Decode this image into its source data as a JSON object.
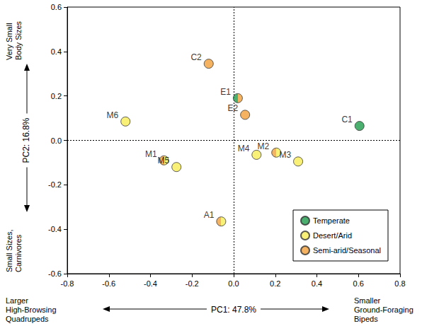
{
  "chart_data": {
    "type": "scatter",
    "x_label": "PC1: 47.8%",
    "y_label": "PC2: 16.8%",
    "annotations": {
      "x_low": "Larger High-Browsing Quadrupeds",
      "x_high": "Smaller Ground-Foraging Bipeds",
      "y_high": "Very Small Body Sizes",
      "y_low": "Small Sizes, Carnivores"
    },
    "series": [
      {
        "name": "Temperate",
        "color": "#1e9b4b"
      },
      {
        "name": "Desert/Arid",
        "color": "#f7ee55"
      },
      {
        "name": "Semi-arid/Seasonal",
        "color": "#f2a03a"
      }
    ],
    "labels": [
      "C2",
      "E1",
      "E2",
      "C1",
      "M6",
      "M1",
      "M5",
      "M4",
      "M2",
      "M3",
      "A1"
    ],
    "x": [
      -0.12,
      0.02,
      0.055,
      0.605,
      -0.52,
      -0.335,
      -0.275,
      0.11,
      0.205,
      0.31,
      -0.06
    ],
    "y": [
      0.345,
      0.19,
      0.115,
      0.065,
      0.085,
      -0.09,
      -0.12,
      -0.065,
      -0.055,
      -0.095,
      -0.365
    ],
    "groups": [
      [
        "Semi-arid/Seasonal"
      ],
      [
        "Temperate",
        "Semi-arid/Seasonal"
      ],
      [
        "Semi-arid/Seasonal"
      ],
      [
        "Temperate"
      ],
      [
        "Desert/Arid"
      ],
      [
        "Semi-arid/Seasonal",
        "Desert/Arid"
      ],
      [
        "Desert/Arid"
      ],
      [
        "Desert/Arid"
      ],
      [
        "Semi-arid/Seasonal",
        "Desert/Arid"
      ],
      [
        "Desert/Arid"
      ],
      [
        "Semi-arid/Seasonal",
        "Desert/Arid"
      ]
    ],
    "reference_lines": [
      {
        "axis": "x",
        "value": 0
      },
      {
        "axis": "y",
        "value": 0
      }
    ],
    "xlim": [
      -0.8,
      0.8
    ],
    "xticks": [
      -0.8,
      -0.6,
      -0.4,
      -0.2,
      {
        "value": 0,
        "label": "0.0"
      },
      0.2,
      0.4,
      0.6,
      0.8
    ],
    "ylim": [
      -0.6,
      0.6
    ],
    "yticks": [
      -0.6,
      -0.4,
      -0.2,
      {
        "value": 0,
        "label": "0.0"
      },
      0.2,
      0.4,
      0.6
    ],
    "grid": false,
    "legend": "lower right",
    "marker": "circle"
  }
}
